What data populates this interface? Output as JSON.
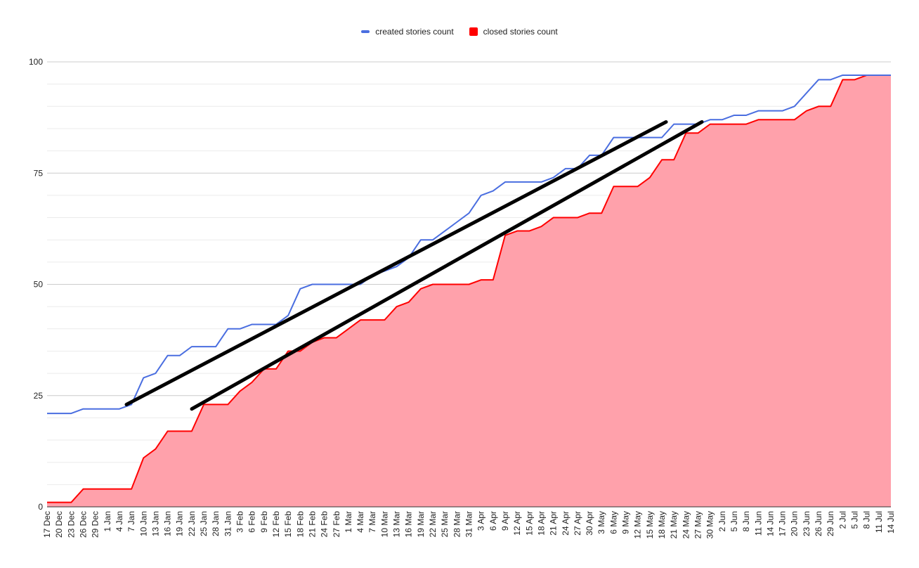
{
  "chart_data": {
    "type": "area",
    "title": "",
    "xlabel": "",
    "ylabel": "",
    "ylim": [
      0,
      100
    ],
    "yticks": [
      0,
      25,
      50,
      75,
      100
    ],
    "minor_grid_step": 5,
    "grid": true,
    "legend_position": "top",
    "categories": [
      "17 Dec",
      "20 Dec",
      "23 Dec",
      "26 Dec",
      "29 Dec",
      "1 Jan",
      "4 Jan",
      "7 Jan",
      "10 Jan",
      "13 Jan",
      "16 Jan",
      "19 Jan",
      "22 Jan",
      "25 Jan",
      "28 Jan",
      "31 Jan",
      "3 Feb",
      "6 Feb",
      "9 Feb",
      "12 Feb",
      "15 Feb",
      "18 Feb",
      "21 Feb",
      "24 Feb",
      "27 Feb",
      "1 Mar",
      "4 Mar",
      "7 Mar",
      "10 Mar",
      "13 Mar",
      "16 Mar",
      "19 Mar",
      "22 Mar",
      "25 Mar",
      "28 Mar",
      "31 Mar",
      "3 Apr",
      "6 Apr",
      "9 Apr",
      "12 Apr",
      "15 Apr",
      "18 Apr",
      "21 Apr",
      "24 Apr",
      "27 Apr",
      "30 Apr",
      "3 May",
      "6 May",
      "9 May",
      "12 May",
      "15 May",
      "18 May",
      "21 May",
      "24 May",
      "27 May",
      "30 May",
      "2 Jun",
      "5 Jun",
      "8 Jun",
      "11 Jun",
      "14 Jun",
      "17 Jun",
      "20 Jun",
      "23 Jun",
      "26 Jun",
      "29 Jun",
      "2 Jul",
      "5 Jul",
      "8 Jul",
      "11 Jul",
      "14 Jul"
    ],
    "series": [
      {
        "name": "created stories count",
        "type": "line",
        "color": "#4a6ee0",
        "values": [
          21,
          21,
          21,
          22,
          22,
          22,
          22,
          23,
          29,
          30,
          34,
          34,
          36,
          36,
          36,
          40,
          40,
          41,
          41,
          41,
          43,
          49,
          50,
          50,
          50,
          50,
          50,
          52,
          53,
          54,
          56,
          60,
          60,
          62,
          64,
          66,
          70,
          71,
          73,
          73,
          73,
          73,
          74,
          76,
          76,
          79,
          79,
          83,
          83,
          83,
          83,
          83,
          86,
          86,
          86,
          87,
          87,
          88,
          88,
          89,
          89,
          89,
          90,
          93,
          96,
          96,
          97,
          97,
          97,
          97,
          97
        ]
      },
      {
        "name": "closed stories count",
        "type": "area",
        "color": "#ff0000",
        "fill": "#ffa1ab",
        "values": [
          1,
          1,
          1,
          4,
          4,
          4,
          4,
          4,
          11,
          13,
          17,
          17,
          17,
          23,
          23,
          23,
          26,
          28,
          31,
          31,
          35,
          35,
          37,
          38,
          38,
          40,
          42,
          42,
          42,
          45,
          46,
          49,
          50,
          50,
          50,
          50,
          51,
          51,
          61,
          62,
          62,
          63,
          65,
          65,
          65,
          66,
          66,
          72,
          72,
          72,
          74,
          78,
          78,
          84,
          84,
          86,
          86,
          86,
          86,
          87,
          87,
          87,
          87,
          89,
          90,
          90,
          96,
          96,
          97,
          97,
          97
        ]
      }
    ],
    "annotations": [
      {
        "type": "line",
        "color": "#000000",
        "from": {
          "x": "6 Jan",
          "y": 23
        },
        "to": {
          "x": "19 May",
          "y": 86.5
        }
      },
      {
        "type": "line",
        "color": "#000000",
        "from": {
          "x": "22 Jan",
          "y": 22
        },
        "to": {
          "x": "29 May",
          "y": 86.5
        }
      }
    ]
  },
  "legend": {
    "items": [
      {
        "label": "created stories count",
        "color": "#4a6ee0",
        "shape": "line"
      },
      {
        "label": "closed stories count",
        "color": "#ff0000",
        "shape": "box"
      }
    ]
  }
}
